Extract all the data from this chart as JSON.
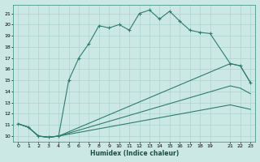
{
  "xlabel": "Humidex (Indice chaleur)",
  "bg_color": "#cce8e4",
  "line_color": "#2e7d6e",
  "grid_color": "#aad4cc",
  "xlim": [
    -0.5,
    23.5
  ],
  "ylim": [
    9.5,
    21.8
  ],
  "xticks": [
    0,
    1,
    2,
    3,
    4,
    5,
    6,
    7,
    8,
    9,
    10,
    11,
    12,
    13,
    14,
    15,
    16,
    17,
    18,
    19,
    21,
    22,
    23
  ],
  "yticks": [
    10,
    11,
    12,
    13,
    14,
    15,
    16,
    17,
    18,
    19,
    20,
    21
  ],
  "line1_x": [
    0,
    1,
    2,
    3,
    4,
    5,
    6,
    7,
    8,
    9,
    10,
    11,
    12,
    13,
    14,
    15,
    16,
    17,
    18,
    19,
    21,
    22,
    23
  ],
  "line1_y": [
    11.1,
    10.8,
    10.0,
    9.9,
    10.0,
    15.0,
    17.0,
    18.3,
    19.9,
    19.7,
    20.0,
    19.5,
    21.0,
    21.3,
    20.5,
    21.2,
    20.3,
    19.5,
    19.3,
    19.2,
    16.5,
    16.3,
    14.8
  ],
  "line2_x": [
    0,
    1,
    2,
    3,
    4,
    21,
    22,
    23
  ],
  "line2_y": [
    11.1,
    10.8,
    10.0,
    9.9,
    10.0,
    16.5,
    16.3,
    14.8
  ],
  "line3_x": [
    0,
    1,
    2,
    3,
    4,
    21,
    22,
    23
  ],
  "line3_y": [
    11.1,
    10.8,
    10.0,
    9.9,
    10.0,
    14.5,
    14.3,
    13.8
  ],
  "line4_x": [
    0,
    1,
    2,
    3,
    4,
    21,
    22,
    23
  ],
  "line4_y": [
    11.1,
    10.8,
    10.0,
    9.9,
    10.0,
    12.8,
    12.6,
    12.4
  ]
}
